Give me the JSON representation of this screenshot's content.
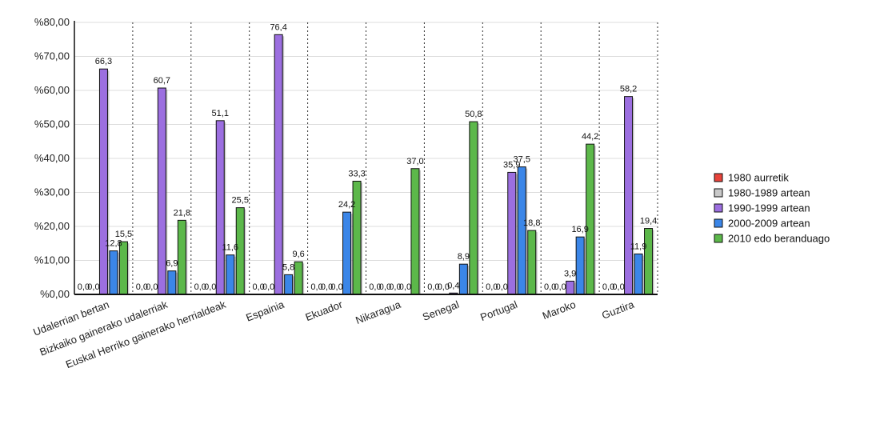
{
  "chart_data": {
    "type": "bar",
    "title": "",
    "xlabel": "",
    "ylabel": "",
    "ylim": [
      0,
      80
    ],
    "yticks": [
      "%0,00",
      "%10,00",
      "%20,00",
      "%30,00",
      "%40,00",
      "%50,00",
      "%60,00",
      "%70,00",
      "%80,00"
    ],
    "grid": "horizontal",
    "legend_position": "right",
    "categories": [
      "Udalerrian bertan",
      "Bizkaiko gainerako udalerriak",
      "Euskal Herriko gainerako herrialdeak",
      "Espainia",
      "Ekuador",
      "Nikaragua",
      "Senegal",
      "Portugal",
      "Maroko",
      "Guztira"
    ],
    "series": [
      {
        "name": "1980 aurretik",
        "color": "#e8433a",
        "values": [
          0.0,
          0.0,
          0.0,
          0.0,
          0.0,
          0.0,
          0.0,
          0.0,
          0.0,
          0.0
        ],
        "labels": [
          "0,0",
          "0,0",
          "0,0",
          "0,0",
          "0,0",
          "0,0",
          "0,0",
          "0,0",
          "0,0",
          "0,0"
        ]
      },
      {
        "name": "1980-1989 artean",
        "color": "#c9c9c9",
        "values": [
          0.0,
          0.0,
          0.0,
          0.0,
          0.0,
          0.0,
          0.0,
          0.0,
          0.0,
          0.0
        ],
        "labels": [
          "0,0",
          "0,0",
          "0,0",
          "0,0",
          "0,0",
          "0,0",
          "0,0",
          "0,0",
          "0,0",
          "0,0"
        ]
      },
      {
        "name": "1990-1999 artean",
        "color": "#9c6fe0",
        "values": [
          66.3,
          60.7,
          51.1,
          76.4,
          0.0,
          0.0,
          0.4,
          35.9,
          3.9,
          58.2
        ],
        "labels": [
          "66,3",
          "60,7",
          "51,1",
          "76,4",
          "0,0",
          "0,0",
          "0,4",
          "35,9",
          "3,9",
          "58,2"
        ]
      },
      {
        "name": "2000-2009 artean",
        "color": "#3b86e8",
        "values": [
          12.8,
          6.9,
          11.6,
          5.8,
          24.2,
          0.0,
          8.9,
          37.5,
          16.9,
          11.9
        ],
        "labels": [
          "12,8",
          "6,9",
          "11,6",
          "5,8",
          "24,2",
          "0,0",
          "8,9",
          "37,5",
          "16,9",
          "11,9"
        ]
      },
      {
        "name": "2010 edo beranduago",
        "color": "#5cb84a",
        "values": [
          15.5,
          21.8,
          25.5,
          9.6,
          33.3,
          37.0,
          50.8,
          18.8,
          44.2,
          19.4
        ],
        "labels": [
          "15,5",
          "21,8",
          "25,5",
          "9,6",
          "33,3",
          "37,0",
          "50,8",
          "18,8",
          "44,2",
          "19,4"
        ]
      }
    ]
  }
}
